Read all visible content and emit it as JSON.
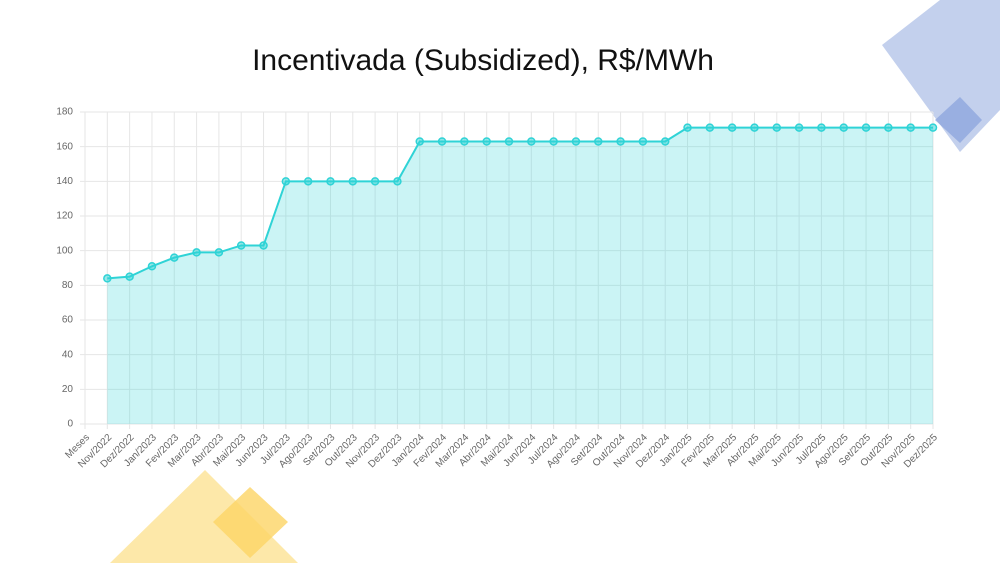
{
  "chart_data": {
    "type": "line",
    "title": "Incentivada (Subsidized), R$/MWh",
    "categories": [
      "Meses",
      "Nov/2022",
      "Dez/2022",
      "Jan/2023",
      "Fev/2023",
      "Mar/2023",
      "Abr/2023",
      "Mai/2023",
      "Jun/2023",
      "Jul/2023",
      "Ago/2023",
      "Set/2023",
      "Out/2023",
      "Nov/2023",
      "Dez/2023",
      "Jan/2024",
      "Fev/2024",
      "Mar/2024",
      "Abr/2024",
      "Mai/2024",
      "Jun/2024",
      "Jul/2024",
      "Ago/2024",
      "Set/2024",
      "Out/2024",
      "Nov/2024",
      "Dez/2024",
      "Jan/2025",
      "Fev/2025",
      "Mar/2025",
      "Abr/2025",
      "Mai/2025",
      "Jun/2025",
      "Jul/2025",
      "Ago/2025",
      "Set/2025",
      "Out/2025",
      "Nov/2025",
      "Dez/2025"
    ],
    "values": [
      null,
      84,
      85,
      91,
      96,
      99,
      99,
      103,
      103,
      140,
      140,
      140,
      140,
      140,
      140,
      163,
      163,
      163,
      163,
      163,
      163,
      163,
      163,
      163,
      163,
      163,
      163,
      171,
      171,
      171,
      171,
      171,
      171,
      171,
      171,
      171,
      171,
      171,
      171
    ],
    "color": "#2fd3d6",
    "fill": true,
    "ylim": [
      0,
      180
    ],
    "yticks": [
      0,
      20,
      40,
      60,
      80,
      100,
      120,
      140,
      160,
      180
    ],
    "grid": true
  }
}
